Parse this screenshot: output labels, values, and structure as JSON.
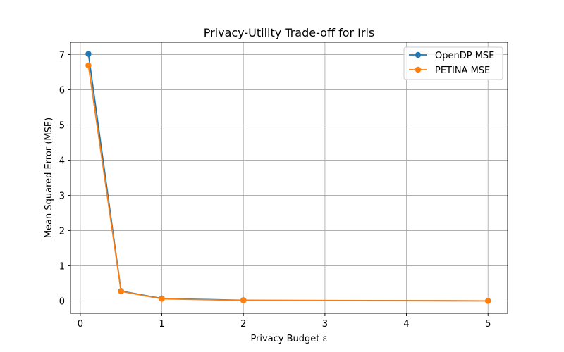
{
  "chart_data": {
    "type": "line",
    "title": "Privacy-Utility Trade-off for Iris",
    "xlabel": "Privacy Budget ε",
    "ylabel": "Mean Squared Error (MSE)",
    "xlim": [
      -0.12,
      5.24
    ],
    "ylim": [
      -0.35,
      7.35
    ],
    "xticks": [
      0,
      1,
      2,
      3,
      4,
      5
    ],
    "yticks": [
      0,
      1,
      2,
      3,
      4,
      5,
      6,
      7
    ],
    "grid": true,
    "legend_position": "top-right",
    "x": [
      0.1,
      0.5,
      1,
      2,
      5
    ],
    "series": [
      {
        "name": "OpenDP MSE",
        "color": "#1f77b4",
        "values": [
          7.02,
          0.28,
          0.07,
          0.02,
          0.003
        ]
      },
      {
        "name": "PETINA MSE",
        "color": "#ff7f0e",
        "values": [
          6.69,
          0.27,
          0.06,
          0.015,
          0.002
        ]
      }
    ]
  }
}
